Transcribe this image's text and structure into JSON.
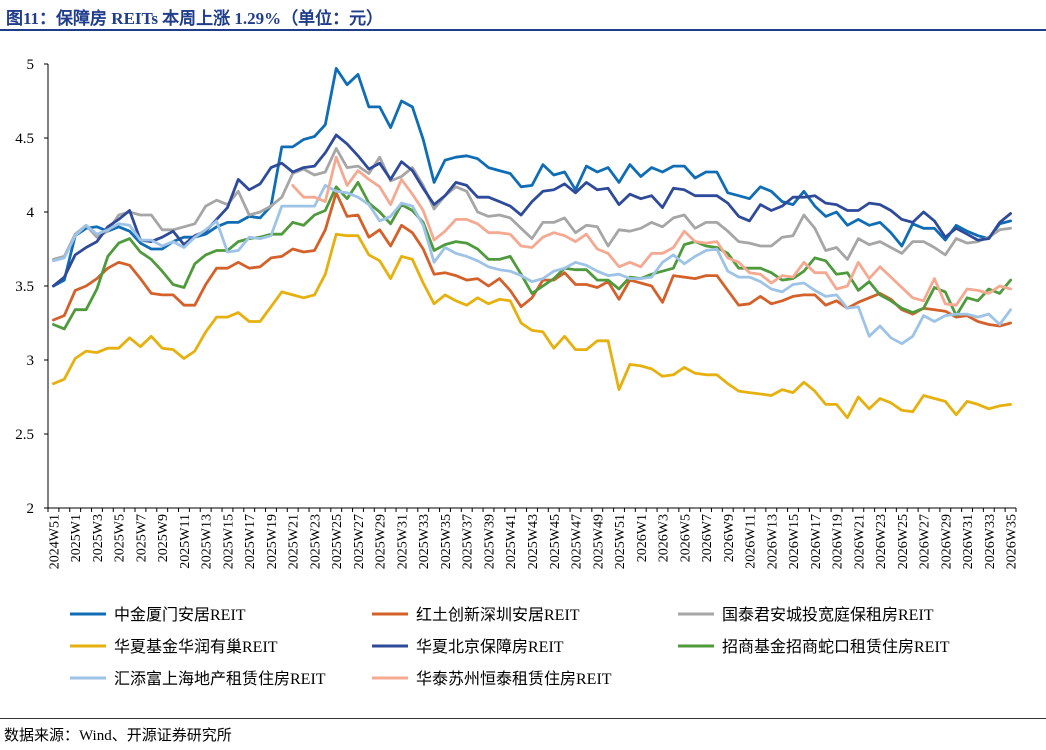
{
  "figure": {
    "title": "图11：保障房 REITs 本周上涨 1.29%（单位：元）",
    "source": "数据来源：Wind、开源证券研究所"
  },
  "chart_data": {
    "type": "line",
    "ylim": [
      2,
      5
    ],
    "yticks": [
      "2",
      "2.5",
      "3",
      "3.5",
      "4",
      "4.5",
      "5"
    ],
    "grid": false,
    "legend_position": "bottom",
    "x": [
      "2024W51",
      "2024W52",
      "2025W1",
      "2025W2",
      "2025W3",
      "2025W4",
      "2025W5",
      "2025W6",
      "2025W7",
      "2025W8",
      "2025W9",
      "2025W10",
      "2025W11",
      "2025W12",
      "2025W13",
      "2025W14",
      "2025W15",
      "2025W16",
      "2025W17",
      "2025W18",
      "2025W19",
      "2025W20",
      "2025W21",
      "2025W22",
      "2025W23",
      "2025W24",
      "2025W25",
      "2025W26",
      "2025W27",
      "2025W28",
      "2025W29",
      "2025W30",
      "2025W31",
      "2025W32",
      "2025W33",
      "2025W34",
      "2025W35",
      "2025W36",
      "2025W37",
      "2025W38",
      "2025W39",
      "2025W40",
      "2025W41",
      "2025W42",
      "2025W43",
      "2025W44",
      "2025W45",
      "2025W46",
      "2025W47",
      "2025W48",
      "2025W49",
      "2025W50",
      "2025W51",
      "2025W52",
      "2026W1",
      "2026W2",
      "2026W3",
      "2026W4",
      "2026W5",
      "2026W6",
      "2026W7",
      "2026W8",
      "2026W9",
      "2026W10",
      "2026W11",
      "2026W12",
      "2026W13",
      "2026W14",
      "2026W15",
      "2026W16",
      "2026W17",
      "2026W18",
      "2026W19",
      "2026W20",
      "2026W21",
      "2026W22",
      "2026W23",
      "2026W24",
      "2026W25",
      "2026W26",
      "2026W27",
      "2026W28",
      "2026W29",
      "2026W30",
      "2026W31",
      "2026W32",
      "2026W33",
      "2026W34",
      "2026W35"
    ],
    "xtick_labels": [
      "2024W51",
      "2025W1",
      "2025W3",
      "2025W5",
      "2025W7",
      "2025W9",
      "2025W11",
      "2025W13",
      "2025W15",
      "2025W17",
      "2025W19",
      "2025W21",
      "2025W23",
      "2025W25",
      "2025W27",
      "2025W29",
      "2025W31",
      "2025W33",
      "2025W35",
      "2025W37",
      "2025W39",
      "2025W41",
      "2025W43",
      "2025W45",
      "2025W47",
      "2025W49",
      "2025W51",
      "2026W1",
      "2026W3",
      "2026W5",
      "2026W7",
      "2026W9",
      "2026W11",
      "2026W13",
      "2026W15",
      "2026W17",
      "2026W19",
      "2026W21",
      "2026W23",
      "2026W25",
      "2026W27",
      "2026W29",
      "2026W31",
      "2026W33",
      "2026W35"
    ],
    "series": [
      {
        "name": "中金厦门安居REIT",
        "color": "#0f6db5",
        "values": [
          3.5,
          3.54,
          3.84,
          3.89,
          3.9,
          3.87,
          3.9,
          3.87,
          3.79,
          3.75,
          3.75,
          3.8,
          3.83,
          3.83,
          3.85,
          3.9,
          3.93,
          3.93,
          3.97,
          3.96,
          4.04,
          4.44,
          4.44,
          4.49,
          4.51,
          4.59,
          4.97,
          4.86,
          4.93,
          4.71,
          4.71,
          4.57,
          4.75,
          4.71,
          4.49,
          4.2,
          4.35,
          4.37,
          4.38,
          4.36,
          4.3,
          4.28,
          4.26,
          4.17,
          4.18,
          4.32,
          4.25,
          4.27,
          4.15,
          4.31,
          4.27,
          4.3,
          4.2,
          4.32,
          4.24,
          4.3,
          4.27,
          4.31,
          4.31,
          4.23,
          4.27,
          4.27,
          4.13,
          4.11,
          4.09,
          4.17,
          4.14,
          4.07,
          4.05,
          4.14,
          4.04,
          3.97,
          4.0,
          3.91,
          3.95,
          3.91,
          3.93,
          3.86,
          3.77,
          3.92,
          3.89,
          3.89,
          3.81,
          3.91,
          3.87,
          3.84,
          3.82,
          3.92,
          3.94
        ]
      },
      {
        "name": "红土创新深圳安居REIT",
        "color": "#d4602a",
        "values": [
          3.27,
          3.3,
          3.47,
          3.5,
          3.55,
          3.62,
          3.66,
          3.64,
          3.55,
          3.45,
          3.44,
          3.44,
          3.37,
          3.37,
          3.51,
          3.62,
          3.62,
          3.66,
          3.62,
          3.63,
          3.69,
          3.7,
          3.75,
          3.73,
          3.74,
          3.88,
          4.13,
          3.97,
          3.98,
          3.83,
          3.88,
          3.77,
          3.91,
          3.86,
          3.75,
          3.58,
          3.59,
          3.57,
          3.54,
          3.55,
          3.5,
          3.55,
          3.47,
          3.36,
          3.42,
          3.54,
          3.54,
          3.59,
          3.51,
          3.51,
          3.49,
          3.53,
          3.41,
          3.54,
          3.52,
          3.5,
          3.39,
          3.57,
          3.56,
          3.55,
          3.57,
          3.57,
          3.47,
          3.37,
          3.38,
          3.43,
          3.38,
          3.4,
          3.43,
          3.44,
          3.44,
          3.37,
          3.4,
          3.35,
          3.39,
          3.42,
          3.45,
          3.41,
          3.34,
          3.31,
          3.35,
          3.34,
          3.33,
          3.29,
          3.3,
          3.26,
          3.24,
          3.23,
          3.25
        ]
      },
      {
        "name": "国泰君安城投宽庭保租房REIT",
        "color": "#a6a6a6",
        "values": [
          3.68,
          3.7,
          3.85,
          3.91,
          3.83,
          3.87,
          3.98,
          4.0,
          3.98,
          3.98,
          3.88,
          3.88,
          3.9,
          3.92,
          4.04,
          4.08,
          4.05,
          4.14,
          3.98,
          4.0,
          4.04,
          4.1,
          4.26,
          4.29,
          4.25,
          4.27,
          4.43,
          4.3,
          4.31,
          4.26,
          4.37,
          4.21,
          4.24,
          4.3,
          4.18,
          4.02,
          4.11,
          4.17,
          4.14,
          4.0,
          3.97,
          3.98,
          3.96,
          3.89,
          3.82,
          3.93,
          3.93,
          3.96,
          3.86,
          3.91,
          3.9,
          3.77,
          3.88,
          3.87,
          3.89,
          3.93,
          3.9,
          3.96,
          3.98,
          3.89,
          3.93,
          3.93,
          3.87,
          3.8,
          3.79,
          3.77,
          3.77,
          3.83,
          3.84,
          3.98,
          3.89,
          3.74,
          3.76,
          3.68,
          3.82,
          3.78,
          3.8,
          3.76,
          3.72,
          3.8,
          3.8,
          3.76,
          3.71,
          3.82,
          3.79,
          3.8,
          3.83,
          3.88,
          3.89
        ]
      },
      {
        "name": "华夏基金华润有巢REIT",
        "color": "#e6b00e",
        "values": [
          2.84,
          2.87,
          3.01,
          3.06,
          3.05,
          3.08,
          3.08,
          3.15,
          3.09,
          3.16,
          3.08,
          3.07,
          3.01,
          3.06,
          3.19,
          3.29,
          3.29,
          3.32,
          3.26,
          3.26,
          3.36,
          3.46,
          3.44,
          3.42,
          3.44,
          3.58,
          3.85,
          3.84,
          3.84,
          3.71,
          3.67,
          3.55,
          3.7,
          3.68,
          3.52,
          3.38,
          3.44,
          3.4,
          3.37,
          3.42,
          3.38,
          3.41,
          3.4,
          3.25,
          3.2,
          3.19,
          3.08,
          3.16,
          3.07,
          3.07,
          3.13,
          3.13,
          2.8,
          2.97,
          2.96,
          2.94,
          2.89,
          2.9,
          2.95,
          2.91,
          2.9,
          2.9,
          2.84,
          2.79,
          2.78,
          2.77,
          2.76,
          2.8,
          2.78,
          2.85,
          2.79,
          2.7,
          2.7,
          2.61,
          2.75,
          2.67,
          2.74,
          2.71,
          2.66,
          2.65,
          2.76,
          2.74,
          2.72,
          2.63,
          2.72,
          2.7,
          2.67,
          2.69,
          2.7
        ]
      },
      {
        "name": "华夏北京保障房REIT",
        "color": "#2e4a9a",
        "values": [
          3.5,
          3.56,
          3.71,
          3.76,
          3.8,
          3.9,
          3.95,
          4.01,
          3.81,
          3.8,
          3.83,
          3.87,
          3.78,
          3.84,
          3.87,
          3.95,
          4.03,
          4.22,
          4.15,
          4.19,
          4.3,
          4.33,
          4.27,
          4.3,
          4.31,
          4.4,
          4.52,
          4.46,
          4.38,
          4.29,
          4.33,
          4.22,
          4.34,
          4.28,
          4.16,
          4.05,
          4.11,
          4.2,
          4.18,
          4.1,
          4.1,
          4.07,
          4.04,
          3.98,
          4.07,
          4.14,
          4.15,
          4.19,
          4.13,
          4.2,
          4.15,
          4.16,
          4.05,
          4.12,
          4.09,
          4.11,
          4.03,
          4.16,
          4.15,
          4.11,
          4.11,
          4.11,
          4.06,
          3.97,
          3.94,
          4.05,
          4.01,
          4.04,
          4.1,
          4.1,
          4.11,
          4.06,
          4.05,
          4.01,
          4.01,
          4.06,
          4.05,
          4.01,
          3.95,
          3.93,
          4.0,
          3.94,
          3.83,
          3.89,
          3.85,
          3.81,
          3.82,
          3.93,
          3.99
        ]
      },
      {
        "name": "招商基金招商蛇口租赁住房REIT",
        "color": "#4f9a3c",
        "values": [
          3.24,
          3.21,
          3.34,
          3.34,
          3.48,
          3.7,
          3.79,
          3.82,
          3.73,
          3.68,
          3.6,
          3.51,
          3.49,
          3.65,
          3.71,
          3.74,
          3.74,
          3.8,
          3.82,
          3.83,
          3.85,
          3.85,
          3.93,
          3.91,
          3.98,
          4.01,
          4.17,
          4.09,
          4.2,
          4.06,
          4.0,
          3.92,
          4.05,
          4.01,
          3.93,
          3.74,
          3.78,
          3.8,
          3.79,
          3.75,
          3.68,
          3.68,
          3.7,
          3.58,
          3.45,
          3.5,
          3.55,
          3.62,
          3.61,
          3.61,
          3.54,
          3.54,
          3.48,
          3.56,
          3.55,
          3.58,
          3.6,
          3.62,
          3.78,
          3.8,
          3.77,
          3.76,
          3.72,
          3.62,
          3.62,
          3.62,
          3.59,
          3.54,
          3.55,
          3.6,
          3.69,
          3.67,
          3.58,
          3.59,
          3.47,
          3.53,
          3.44,
          3.4,
          3.35,
          3.32,
          3.35,
          3.49,
          3.46,
          3.3,
          3.42,
          3.4,
          3.48,
          3.45,
          3.54
        ]
      },
      {
        "name": "汇添富上海地产租赁住房REIT",
        "color": "#9dc3e6",
        "values": [
          3.67,
          3.69,
          3.84,
          3.91,
          3.85,
          3.88,
          3.92,
          3.91,
          3.81,
          3.81,
          3.77,
          3.8,
          3.76,
          3.83,
          3.88,
          3.94,
          3.73,
          3.74,
          3.83,
          3.82,
          3.84,
          4.04,
          4.04,
          4.04,
          4.04,
          4.18,
          4.14,
          4.13,
          4.1,
          4.05,
          3.94,
          3.97,
          4.06,
          4.04,
          3.91,
          3.66,
          3.76,
          3.72,
          3.7,
          3.67,
          3.63,
          3.61,
          3.6,
          3.57,
          3.53,
          3.55,
          3.6,
          3.62,
          3.66,
          3.64,
          3.6,
          3.57,
          3.58,
          3.55,
          3.55,
          3.56,
          3.66,
          3.71,
          3.65,
          3.7,
          3.74,
          3.75,
          3.6,
          3.56,
          3.56,
          3.53,
          3.48,
          3.46,
          3.51,
          3.52,
          3.47,
          3.43,
          3.44,
          3.35,
          3.36,
          3.16,
          3.23,
          3.15,
          3.11,
          3.16,
          3.3,
          3.26,
          3.3,
          3.31,
          3.31,
          3.29,
          3.31,
          3.24,
          3.34
        ]
      },
      {
        "name": "华泰苏州恒泰租赁住房REIT",
        "color": "#f4a990",
        "values": [
          null,
          null,
          null,
          null,
          null,
          null,
          null,
          null,
          null,
          null,
          null,
          null,
          null,
          null,
          null,
          null,
          null,
          null,
          null,
          null,
          null,
          null,
          4.18,
          4.1,
          4.1,
          4.07,
          4.37,
          4.18,
          4.28,
          4.22,
          4.17,
          4.05,
          4.22,
          4.12,
          4.01,
          3.81,
          3.87,
          3.95,
          3.95,
          3.92,
          3.86,
          3.86,
          3.85,
          3.77,
          3.76,
          3.83,
          3.86,
          3.84,
          3.8,
          3.85,
          3.75,
          3.72,
          3.63,
          3.66,
          3.63,
          3.72,
          3.72,
          3.76,
          3.87,
          3.8,
          3.79,
          3.8,
          3.69,
          3.66,
          3.59,
          3.58,
          3.52,
          3.57,
          3.56,
          3.66,
          3.59,
          3.59,
          3.48,
          3.5,
          3.66,
          3.55,
          3.63,
          3.56,
          3.49,
          3.42,
          3.4,
          3.55,
          3.38,
          3.37,
          3.48,
          3.47,
          3.45,
          3.5,
          3.48
        ]
      }
    ]
  }
}
